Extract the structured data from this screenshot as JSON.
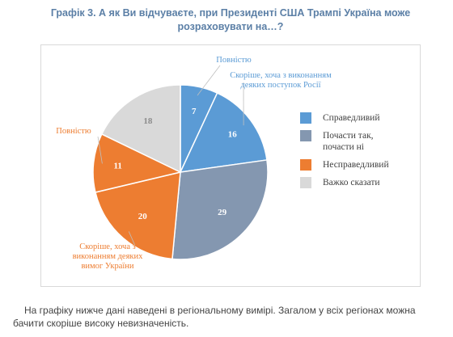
{
  "title": "Графік 3. А як Ви відчуваєте, при Президенті США Трампі Україна може розраховувати на…?",
  "chart_data": {
    "type": "pie",
    "title": "",
    "start_angle_deg": 0,
    "slices": [
      {
        "label": "Повністю",
        "value": 7,
        "color": "#5b9bd5",
        "text_color": "#ffffff"
      },
      {
        "label": "Скоріше, хоча з виконанням деяких поступок Росії",
        "value": 16,
        "color": "#5b9bd5",
        "text_color": "#ffffff"
      },
      {
        "label": "Почасти так, почасти ні",
        "value": 29,
        "color": "#8497b0",
        "text_color": "#ffffff"
      },
      {
        "label": "Скоріше, хоча з виконанням деяких вимог України",
        "value": 20,
        "color": "#ed7d31",
        "text_color": "#ffffff"
      },
      {
        "label": "Повністю",
        "value": 11,
        "color": "#ed7d31",
        "text_color": "#ffffff"
      },
      {
        "label": "Важко сказати",
        "value": 18,
        "color": "#d9d9d9",
        "text_color": "#8c8c8c"
      }
    ],
    "legend": {
      "position": "right",
      "items": [
        {
          "label": "Справедливий",
          "color": "#5b9bd5"
        },
        {
          "label": "Почасти так, почасти ні",
          "color": "#8497b0"
        },
        {
          "label": "Несправедливий",
          "color": "#ed7d31"
        },
        {
          "label": "Важко сказати",
          "color": "#d9d9d9"
        }
      ]
    },
    "callouts": [
      {
        "slice": 0,
        "lines": [
          "Повністю"
        ],
        "color": "#5b9bd5"
      },
      {
        "slice": 1,
        "lines": [
          "Скоріше, хоча з виконанням",
          "деяких поступок Росії"
        ],
        "color": "#5b9bd5"
      },
      {
        "slice": 3,
        "lines": [
          "Скоріше, хоча з",
          "виконанням деяких",
          "вимог України"
        ],
        "color": "#ed7d31"
      },
      {
        "slice": 4,
        "lines": [
          "Повністю"
        ],
        "color": "#ed7d31"
      }
    ]
  },
  "footer": {
    "text": "На графіку нижче дані наведені в регіональному вимірі. Загалом у всіх регіонах можна бачити скоріше високу невизначеність."
  }
}
